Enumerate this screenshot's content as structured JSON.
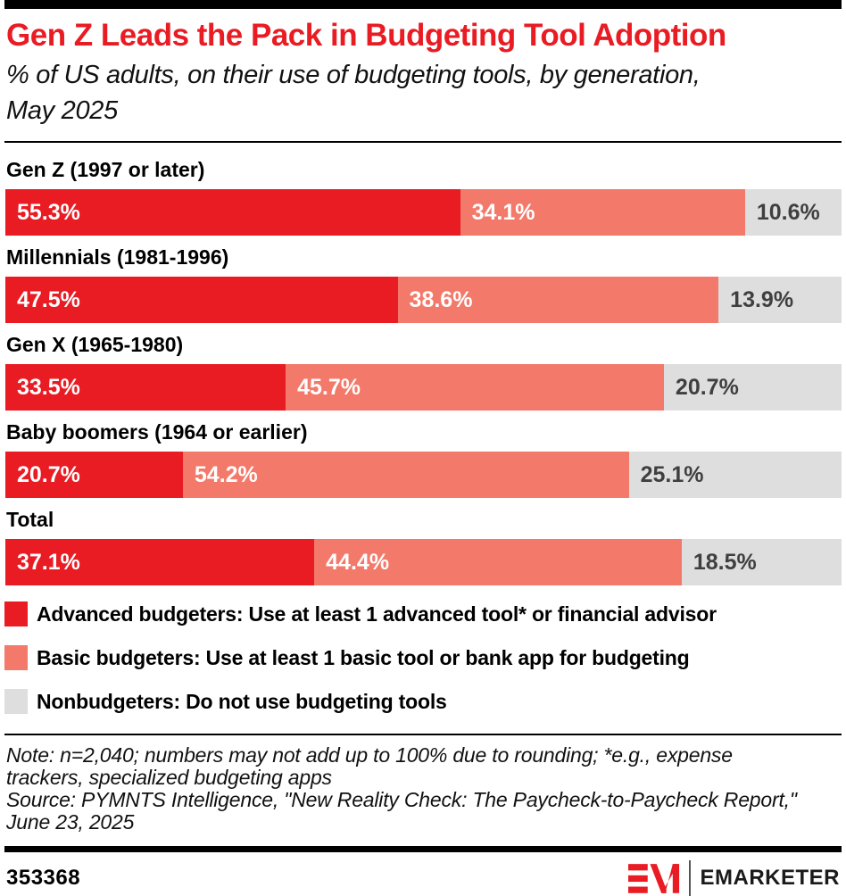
{
  "header": {
    "title": "Gen Z Leads the Pack in Budgeting Tool Adoption",
    "subtitle": "% of US adults, on their use of budgeting tools, by generation, May 2025"
  },
  "chart_data": {
    "type": "bar",
    "orientation": "horizontal-stacked",
    "title": "Gen Z Leads the Pack in Budgeting Tool Adoption",
    "subtitle": "% of US adults, on their use of budgeting tools, by generation, May 2025",
    "categories": [
      "Gen Z (1997 or later)",
      "Millennials (1981-1996)",
      "Gen X (1965-1980)",
      "Baby boomers (1964 or earlier)",
      "Total"
    ],
    "series": [
      {
        "name": "Advanced budgeters: Use at least 1 advanced tool* or financial advisor",
        "color": "#E91B23",
        "label_color": "#FFFFFF",
        "values": [
          55.3,
          47.5,
          33.5,
          20.7,
          37.1
        ]
      },
      {
        "name": "Basic budgeters: Use at least 1 basic tool or bank app for budgeting",
        "color": "#F3796A",
        "label_color": "#FFFFFF",
        "values": [
          34.1,
          38.6,
          45.7,
          54.2,
          44.4
        ]
      },
      {
        "name": "Nonbudgeters: Do not use budgeting tools",
        "color": "#DEDEDE",
        "label_color": "#3F3F3F",
        "values": [
          10.6,
          13.9,
          20.7,
          25.1,
          18.5
        ]
      }
    ],
    "value_suffix": "%",
    "xlim": [
      0,
      100
    ],
    "grid": false,
    "legend_position": "bottom"
  },
  "notes": {
    "note": "Note: n=2,040; numbers may not add up to 100% due to rounding; *e.g., expense trackers, specialized budgeting apps",
    "source": "Source: PYMNTS Intelligence, \"New Reality Check: The Paycheck-to-Paycheck Report,\" June 23, 2025"
  },
  "footer": {
    "chart_id": "353368",
    "brand": "EMARKETER"
  },
  "colors": {
    "accent_red": "#E91B23",
    "salmon": "#F3796A",
    "light_gray": "#DEDEDE",
    "dark_text": "#3F3F3F",
    "bar_black": "#000000"
  }
}
